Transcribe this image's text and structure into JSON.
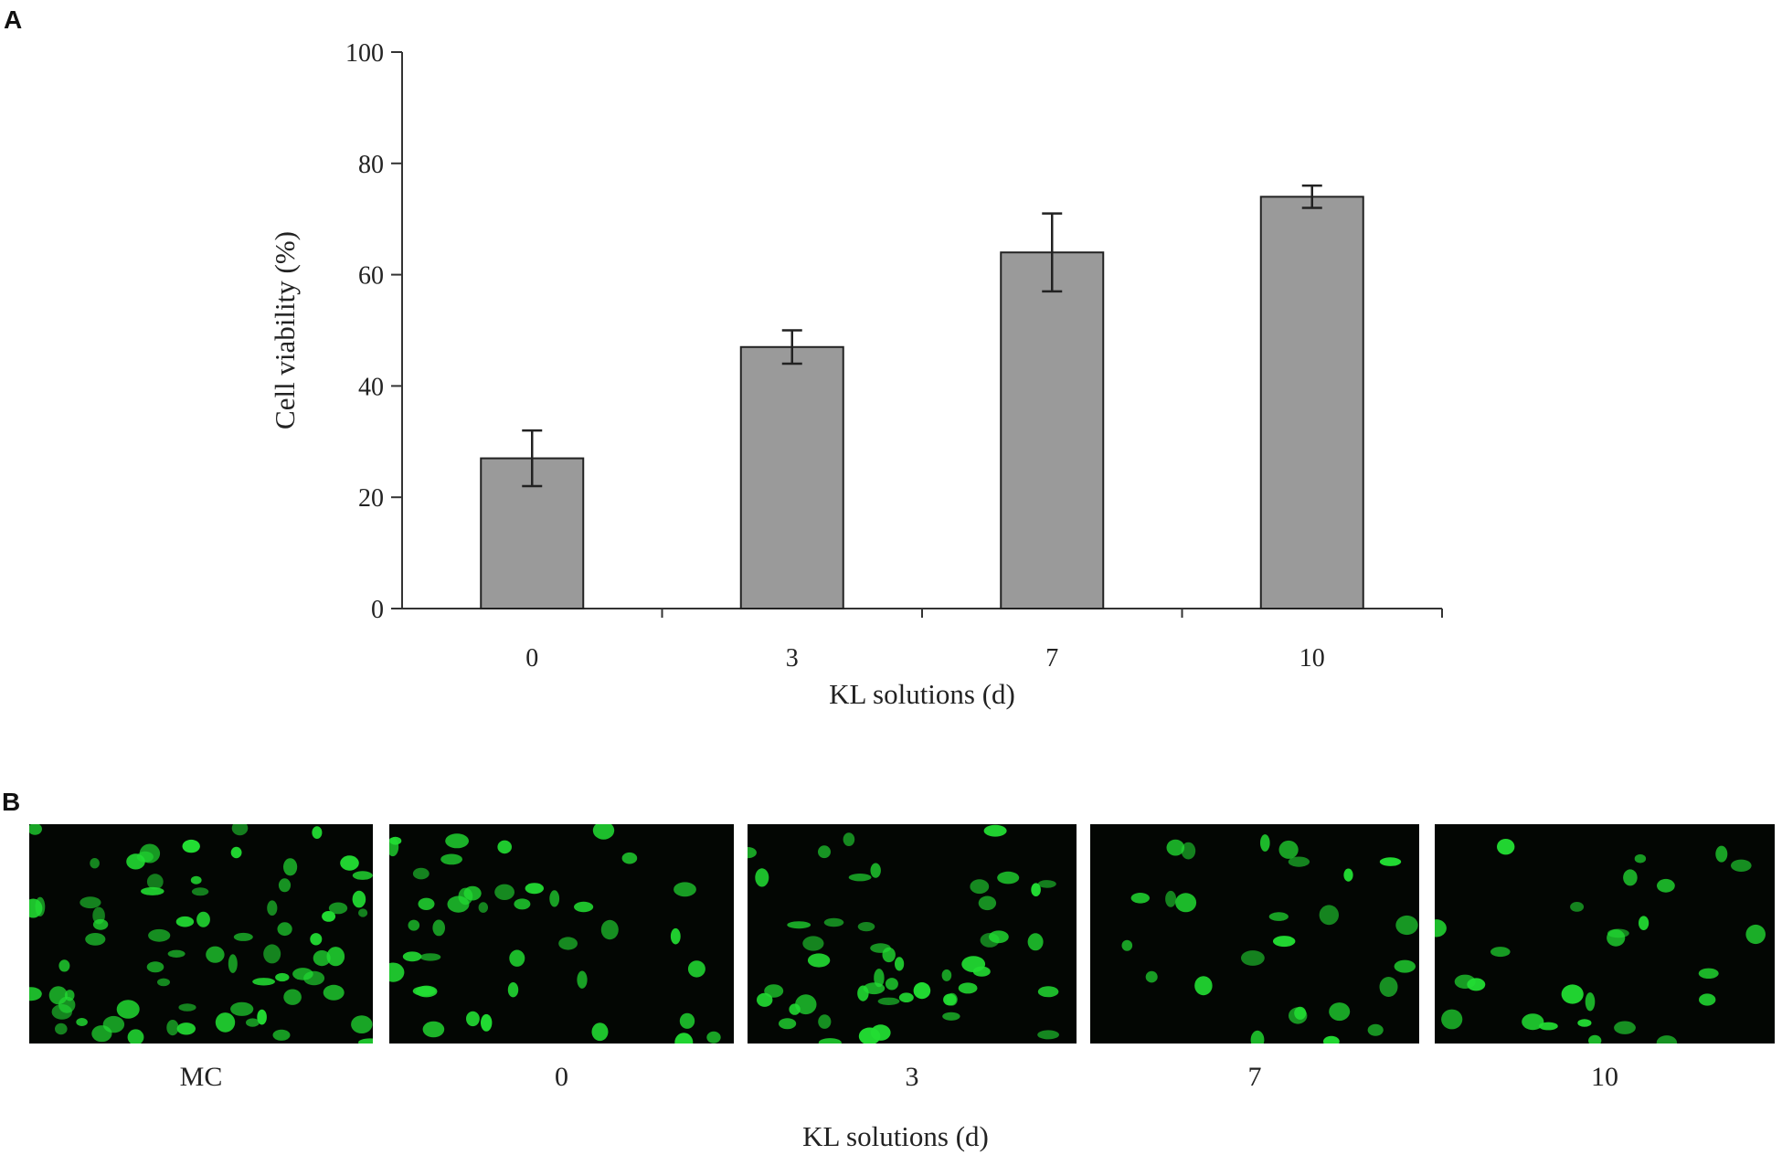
{
  "panel_a": {
    "letter": "A"
  },
  "panel_b": {
    "letter": "B",
    "panel_labels": [
      "MC",
      "0",
      "3",
      "7",
      "10"
    ],
    "xlabel": "KL solutions (d)",
    "cell_color": "#22dd33"
  },
  "chart_data": {
    "type": "bar",
    "categories": [
      "0",
      "3",
      "7",
      "10"
    ],
    "values": [
      27,
      47,
      64,
      74
    ],
    "error": [
      5,
      3,
      7,
      2
    ],
    "xlabel": "KL solutions (d)",
    "ylabel": "Cell viability (%)",
    "ylim": [
      0,
      100
    ],
    "yticks": [
      0,
      20,
      40,
      60,
      80,
      100
    ],
    "bar_color": "#9a9a9a",
    "grid": false,
    "legend": "none"
  }
}
